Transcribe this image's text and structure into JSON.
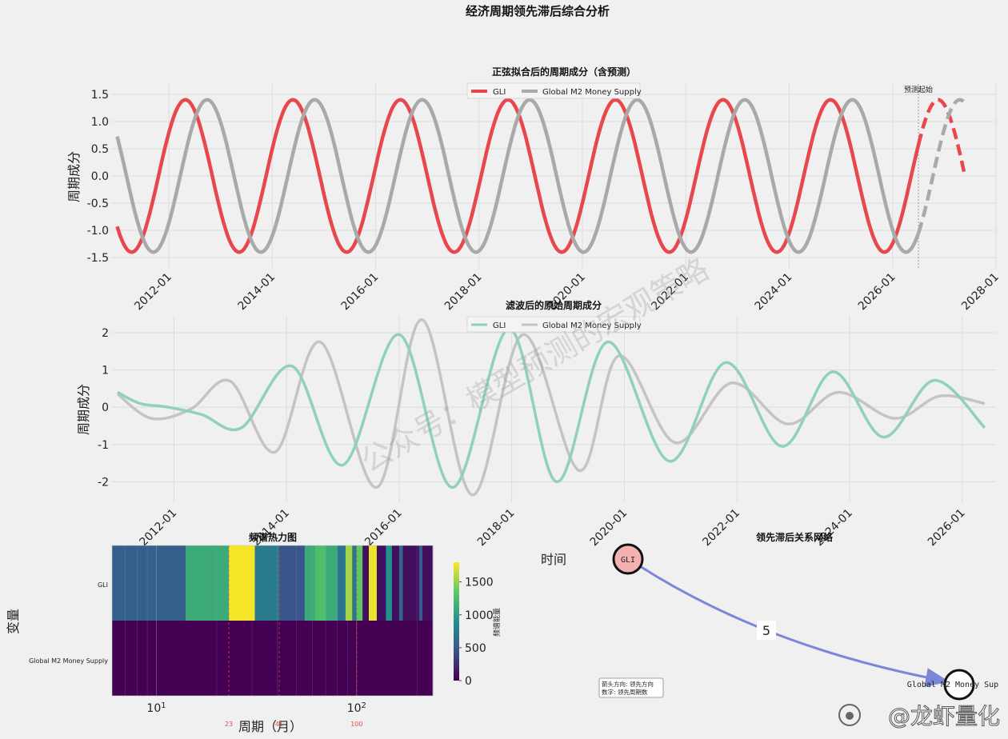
{
  "suptitle": "经济周期领先滞后综合分析",
  "watermark": "公众号：模型预测的宏观策略",
  "brand": "@龙虾量化",
  "chart_data": [
    {
      "type": "line",
      "title": "正弦拟合后的周期成分（含预测）",
      "ylabel": "周期成分",
      "xlim": [
        2010.9,
        2028.0
      ],
      "ylim": [
        -1.72,
        1.72
      ],
      "yticks": [
        "1.5",
        "1.0",
        "0.5",
        "0.0",
        "-0.5",
        "-1.0",
        "-1.5"
      ],
      "xticks": [
        "2012-01",
        "2014-01",
        "2016-01",
        "2018-01",
        "2020-01",
        "2022-01",
        "2024-01",
        "2026-01",
        "2028-01"
      ],
      "forecast_start": 2026.5,
      "forecast_label": "预测起始",
      "legend": "top-center",
      "series": [
        {
          "name": "GLI",
          "color": "#e8474c",
          "x_start": 2011.0,
          "x_end": 2027.4,
          "amplitude": 1.4,
          "period": 2.08,
          "phase_x": 2011.28
        },
        {
          "name": "Global M2 Money Supply",
          "color": "#a9a9a9",
          "x_start": 2011.0,
          "x_end": 2027.4,
          "amplitude": 1.4,
          "period": 2.08,
          "phase_x": 2011.7
        }
      ]
    },
    {
      "type": "line",
      "title": "滤波后的原始周期成分",
      "ylabel": "周期成分",
      "xlim": [
        2010.9,
        2026.6
      ],
      "ylim": [
        -2.55,
        2.45
      ],
      "yticks": [
        "2",
        "1",
        "0",
        "-1",
        "-2"
      ],
      "xticks": [
        "2012-01",
        "2014-01",
        "2016-01",
        "2018-01",
        "2020-01",
        "2022-01",
        "2024-01",
        "2026-01"
      ],
      "legend": "top-center",
      "series": [
        {
          "name": "GLI",
          "color": "#8fd1b9",
          "x": [
            2011.0,
            2011.4,
            2011.9,
            2012.5,
            2013.2,
            2014.1,
            2015.0,
            2016.0,
            2016.95,
            2017.95,
            2018.8,
            2019.7,
            2020.8,
            2021.8,
            2022.8,
            2023.7,
            2024.6,
            2025.5,
            2026.4
          ],
          "y": [
            0.4,
            0.1,
            0.0,
            -0.2,
            -0.55,
            1.1,
            -1.55,
            1.95,
            -2.15,
            2.1,
            -2.0,
            1.75,
            -1.45,
            1.2,
            -1.05,
            0.95,
            -0.8,
            0.72,
            -0.55
          ]
        },
        {
          "name": "Global M2 Money Supply",
          "color": "#c4c4c4",
          "x": [
            2011.0,
            2011.6,
            2012.3,
            2013.0,
            2013.8,
            2014.6,
            2015.6,
            2016.4,
            2017.3,
            2018.2,
            2019.2,
            2019.9,
            2020.9,
            2021.9,
            2022.9,
            2023.8,
            2024.8,
            2025.6,
            2026.4
          ],
          "y": [
            0.35,
            -0.3,
            -0.05,
            0.7,
            -1.2,
            1.75,
            -2.15,
            2.35,
            -2.35,
            1.95,
            -1.7,
            1.38,
            -0.95,
            0.65,
            -0.45,
            0.4,
            -0.3,
            0.3,
            0.1
          ]
        }
      ]
    },
    {
      "type": "heatmap",
      "title": "频谱热力图",
      "xlabel": "周期（月）",
      "ylabel": "变量",
      "rows": [
        "GLI",
        "Global M2 Money Supply"
      ],
      "x_scale": "log",
      "xlim": [
        6,
        240
      ],
      "xticks": [
        10,
        100
      ],
      "colorbar": {
        "label": "频谱能量",
        "ticks": [
          0,
          500,
          1000,
          1500
        ],
        "max": 1800
      },
      "marked_periods": [
        23,
        41,
        100
      ],
      "marked_period_labels": [
        "23",
        "41",
        "100"
      ],
      "cells": [
        {
          "from": 6,
          "to": 14,
          "v": 550,
          "row": "GLI"
        },
        {
          "from": 14,
          "to": 23,
          "v": 1100,
          "row": "GLI"
        },
        {
          "from": 23,
          "to": 31,
          "v": 1780,
          "row": "GLI"
        },
        {
          "from": 31,
          "to": 41,
          "v": 750,
          "row": "GLI"
        },
        {
          "from": 41,
          "to": 55,
          "v": 470,
          "row": "GLI"
        },
        {
          "from": 55,
          "to": 62,
          "v": 1100,
          "row": "GLI"
        },
        {
          "from": 62,
          "to": 70,
          "v": 1250,
          "row": "GLI"
        },
        {
          "from": 70,
          "to": 80,
          "v": 1100,
          "row": "GLI"
        },
        {
          "from": 80,
          "to": 88,
          "v": 700,
          "row": "GLI"
        },
        {
          "from": 88,
          "to": 95,
          "v": 1550,
          "row": "GLI"
        },
        {
          "from": 95,
          "to": 100,
          "v": 700,
          "row": "GLI"
        },
        {
          "from": 100,
          "to": 107,
          "v": 1350,
          "row": "GLI"
        },
        {
          "from": 107,
          "to": 115,
          "v": 80,
          "row": "GLI"
        },
        {
          "from": 115,
          "to": 126,
          "v": 1750,
          "row": "GLI"
        },
        {
          "from": 126,
          "to": 140,
          "v": 80,
          "row": "GLI"
        },
        {
          "from": 140,
          "to": 150,
          "v": 900,
          "row": "GLI"
        },
        {
          "from": 150,
          "to": 163,
          "v": 80,
          "row": "GLI"
        },
        {
          "from": 163,
          "to": 170,
          "v": 600,
          "row": "GLI"
        },
        {
          "from": 170,
          "to": 205,
          "v": 80,
          "row": "GLI"
        },
        {
          "from": 205,
          "to": 213,
          "v": 500,
          "row": "GLI"
        },
        {
          "from": 213,
          "to": 240,
          "v": 80,
          "row": "GLI"
        },
        {
          "from": 6,
          "to": 240,
          "v": 0,
          "row": "Global M2 Money Supply"
        }
      ]
    },
    {
      "type": "network",
      "title": "领先滞后关系网络",
      "axis_label": "时间",
      "nodes": [
        {
          "name": "GLI",
          "color": "#f3b2b0"
        },
        {
          "name": "Global M2 Money Sup",
          "color": "#ffffff"
        }
      ],
      "edges": [
        {
          "from": "GLI",
          "to": "Global M2 Money Sup",
          "lag": "5",
          "color": "#7b86d6"
        }
      ],
      "legend_lines": [
        "箭头方向: 领先方向",
        "数字: 领先周期数"
      ]
    }
  ]
}
